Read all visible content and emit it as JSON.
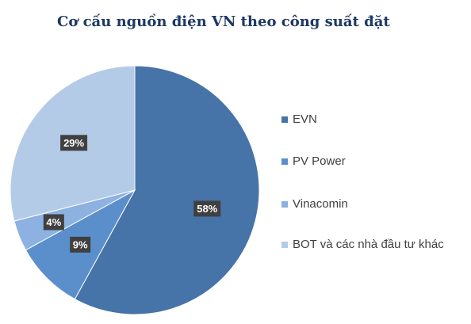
{
  "chart_data": {
    "type": "pie",
    "title": "Cơ cấu nguồn điện VN theo công suất đặt",
    "categories": [
      "EVN",
      "PV Power",
      "Vinacomin",
      "BOT và các nhà đầu tư khác"
    ],
    "values": [
      58,
      9,
      4,
      29
    ],
    "data_labels": [
      "58%",
      "9%",
      "4%",
      "29%"
    ],
    "colors": [
      "#4774a8",
      "#5b8fcc",
      "#8db1e0",
      "#b4cbe8"
    ],
    "legend_placement": "right"
  }
}
